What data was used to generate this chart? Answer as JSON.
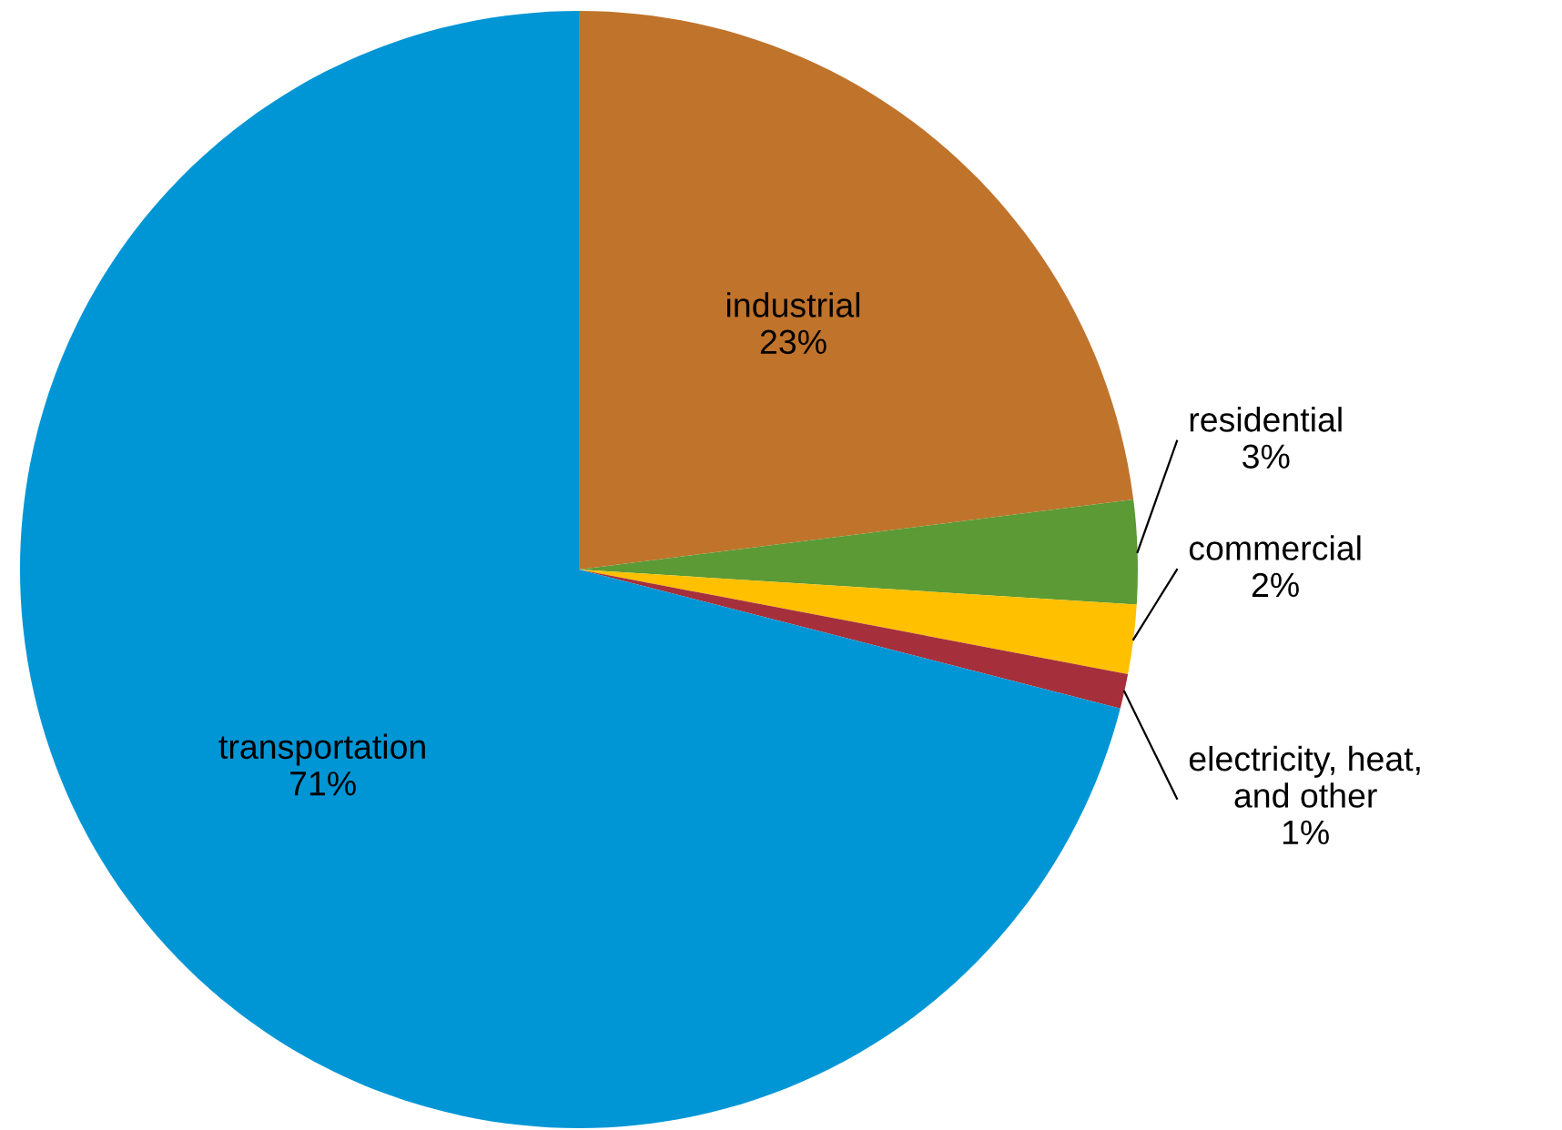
{
  "chart_data": {
    "type": "pie",
    "categories": [
      "industrial",
      "residential",
      "commercial",
      "electricity, heat,\nand other",
      "transportation"
    ],
    "values": [
      23,
      3,
      2,
      1,
      71
    ],
    "value_labels": [
      "23%",
      "3%",
      "2%",
      "1%",
      "71%"
    ],
    "colors": [
      "#c0732b",
      "#5b9a34",
      "#ffc000",
      "#a5303b",
      "#0096d6"
    ]
  }
}
